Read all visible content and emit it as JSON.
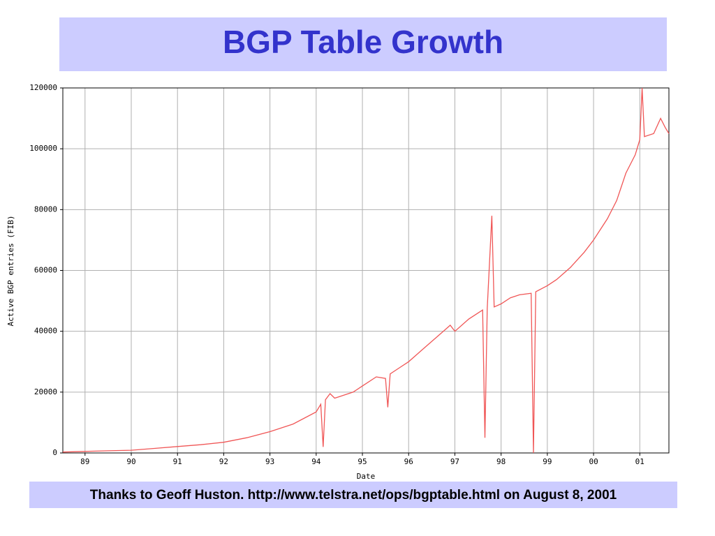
{
  "chart_data": {
    "type": "line",
    "title": "BGP Table Growth",
    "x_label": "Date",
    "y_label": "Active BGP entries (FIB)",
    "x": [
      1988.52,
      1989.0,
      1989.5,
      1990.0,
      1990.5,
      1991.0,
      1991.5,
      1992.0,
      1992.5,
      1993.0,
      1993.5,
      1994.0,
      1994.1,
      1994.15,
      1994.2,
      1994.3,
      1994.4,
      1994.5,
      1994.8,
      1995.0,
      1995.3,
      1995.5,
      1995.55,
      1995.6,
      1995.8,
      1996.0,
      1996.3,
      1996.6,
      1996.9,
      1997.0,
      1997.3,
      1997.6,
      1997.65,
      1997.7,
      1997.8,
      1997.85,
      1998.0,
      1998.2,
      1998.4,
      1998.65,
      1998.7,
      1998.75,
      1999.0,
      1999.2,
      1999.5,
      1999.8,
      2000.0,
      2000.3,
      2000.5,
      2000.7,
      2000.9,
      2001.0,
      2001.05,
      2001.1,
      2001.3,
      2001.45,
      2001.55,
      2001.63
    ],
    "series": [
      {
        "name": "Active BGP entries",
        "color": "#f05656",
        "values": [
          300,
          500,
          700,
          900,
          1500,
          2100,
          2700,
          3500,
          5000,
          7000,
          9500,
          13500,
          16000,
          2000,
          17500,
          19500,
          18000,
          18500,
          20000,
          22000,
          25000,
          24500,
          15000,
          26000,
          28000,
          30000,
          34000,
          38000,
          42000,
          40000,
          44000,
          47000,
          5000,
          47500,
          78000,
          48000,
          49000,
          51000,
          52000,
          52500,
          0,
          53000,
          55000,
          57000,
          61000,
          66000,
          70000,
          77000,
          83000,
          92000,
          98000,
          103000,
          120000,
          104000,
          105000,
          110000,
          107000,
          105000
        ]
      }
    ],
    "xlim": [
      1988.52,
      2001.63
    ],
    "xticks": [
      {
        "value": 1989,
        "label": "89"
      },
      {
        "value": 1990,
        "label": "90"
      },
      {
        "value": 1991,
        "label": "91"
      },
      {
        "value": 1992,
        "label": "92"
      },
      {
        "value": 1993,
        "label": "93"
      },
      {
        "value": 1994,
        "label": "94"
      },
      {
        "value": 1995,
        "label": "95"
      },
      {
        "value": 1996,
        "label": "96"
      },
      {
        "value": 1997,
        "label": "97"
      },
      {
        "value": 1998,
        "label": "98"
      },
      {
        "value": 1999,
        "label": "99"
      },
      {
        "value": 2000,
        "label": "00"
      },
      {
        "value": 2001,
        "label": "01"
      }
    ],
    "ylim": [
      0,
      120000
    ],
    "yticks": [
      0,
      20000,
      40000,
      60000,
      80000,
      100000,
      120000
    ],
    "grid": true
  },
  "footer": "Thanks to Geoff Huston. http://www.telstra.net/ops/bgptable.html on August 8, 2001"
}
